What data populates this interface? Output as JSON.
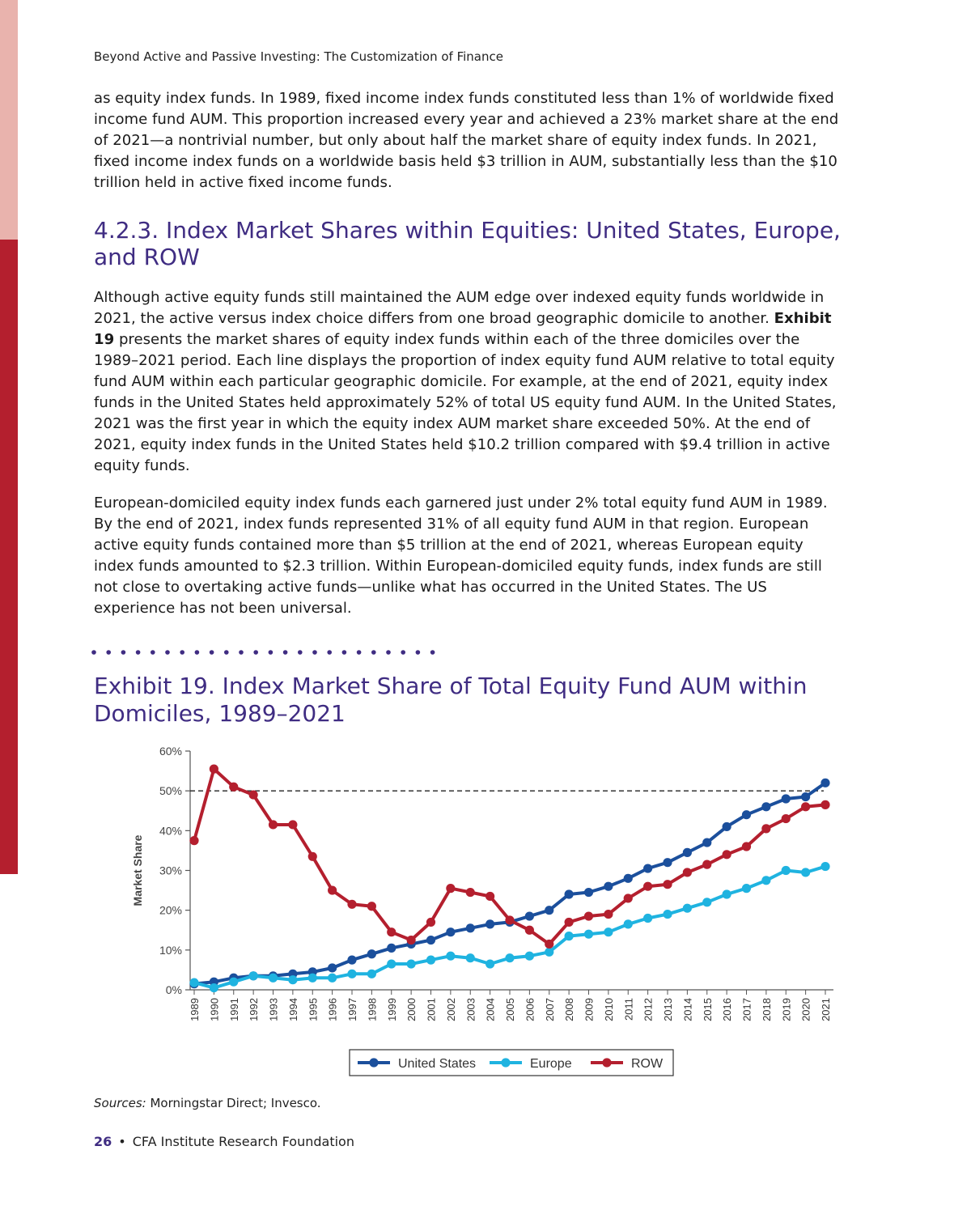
{
  "running_head": "Beyond Active and Passive Investing: The Customization of Finance",
  "intro_paragraph": "as equity index funds. In 1989, fixed income index funds constituted less than 1% of worldwide fixed income fund AUM. This proportion increased every year and achieved a 23% market share at the end of 2021—a nontrivial number, but only about half the market share of equity index funds. In 2021, fixed income index funds on a worldwide basis held $3 trillion in AUM, substantially less than the $10 trillion held in active fixed income funds.",
  "section_heading": "4.2.3. Index Market Shares within Equities: United States, Europe, and ROW",
  "paragraph2": {
    "before": "Although active equity funds still maintained the AUM edge over indexed equity funds worldwide in 2021, the active versus index choice differs from one broad geographic domicile to another. ",
    "bold": "Exhibit 19",
    "after": " presents the market shares of equity index funds within each of the three domiciles over the 1989–2021 period. Each line displays the proportion of index equity fund AUM relative to total equity fund AUM within each particular geographic domicile. For example, at the end of 2021, equity index funds in the United States held approximately 52% of total US equity fund AUM. In the United States, 2021 was the first year in which the equity index AUM market share exceeded 50%. At the end of 2021, equity index funds in the United States held $10.2 trillion compared with $9.4 trillion in active equity funds."
  },
  "paragraph3": "European-domiciled equity index funds each garnered just under 2% total equity fund AUM in 1989. By the end of 2021, index funds represented 31% of all equity fund AUM in that region. European active equity funds contained more than $5 trillion at the end of 2021, whereas European equity index funds amounted to $2.3 trillion. Within European-domiciled equity funds, index funds are still not close to overtaking active funds—unlike what has occurred in the United States. The US experience has not been universal.",
  "exhibit_title": "Exhibit 19. Index Market Share of Total Equity Fund AUM within Domiciles, 1989–2021",
  "colors": {
    "accent_purple": "#3f2c82",
    "united_states": "#1b4f9c",
    "europe": "#1fb3e0",
    "row": "#b41f2e"
  },
  "chart_data": {
    "type": "line",
    "title": "",
    "xlabel": "",
    "ylabel": "Market Share",
    "ylim": [
      0,
      60
    ],
    "yticks": [
      "0%",
      "10%",
      "20%",
      "30%",
      "40%",
      "50%",
      "60%"
    ],
    "reference_line": 50,
    "legend_position": "bottom",
    "categories": [
      "1989",
      "1990",
      "1991",
      "1992",
      "1993",
      "1994",
      "1995",
      "1996",
      "1997",
      "1998",
      "1999",
      "2000",
      "2001",
      "2002",
      "2003",
      "2004",
      "2005",
      "2006",
      "2007",
      "2008",
      "2009",
      "2010",
      "2011",
      "2012",
      "2013",
      "2014",
      "2015",
      "2016",
      "2017",
      "2018",
      "2019",
      "2020",
      "2021"
    ],
    "series": [
      {
        "name": "United States",
        "color": "#1b4f9c",
        "values": [
          1.5,
          2,
          3,
          3.5,
          3.5,
          4,
          4.5,
          5.5,
          7.5,
          9,
          10.5,
          11.5,
          12.5,
          14.5,
          15.5,
          16.5,
          17,
          18.5,
          20,
          24,
          24.5,
          26,
          28,
          30.5,
          32,
          34.5,
          37,
          41,
          44,
          46,
          48,
          48.5,
          52
        ]
      },
      {
        "name": "Europe",
        "color": "#1fb3e0",
        "values": [
          1.8,
          0.5,
          2,
          3.5,
          3,
          2.5,
          3,
          3,
          4,
          4,
          6.5,
          6.5,
          7.5,
          8.5,
          8,
          6.5,
          8,
          8.5,
          9.5,
          13.5,
          14,
          14.5,
          16.5,
          18,
          19,
          20.5,
          22,
          24,
          25.5,
          27.5,
          30,
          29.5,
          31
        ]
      },
      {
        "name": "ROW",
        "color": "#b41f2e",
        "values": [
          37.5,
          55.5,
          51,
          49,
          41.5,
          41.5,
          33.5,
          25,
          21.5,
          21,
          14.5,
          12.5,
          17,
          25.5,
          24.5,
          23.5,
          17.5,
          15,
          11.5,
          17,
          18.5,
          19,
          23,
          26,
          26.5,
          29.5,
          31.5,
          34,
          36,
          40.5,
          43,
          46,
          46.5
        ]
      }
    ]
  },
  "sources": {
    "label": "Sources:",
    "text": " Morningstar Direct; Invesco."
  },
  "footer": {
    "page_number": "26",
    "bullet": "•",
    "organization": "CFA Institute Research Foundation"
  }
}
